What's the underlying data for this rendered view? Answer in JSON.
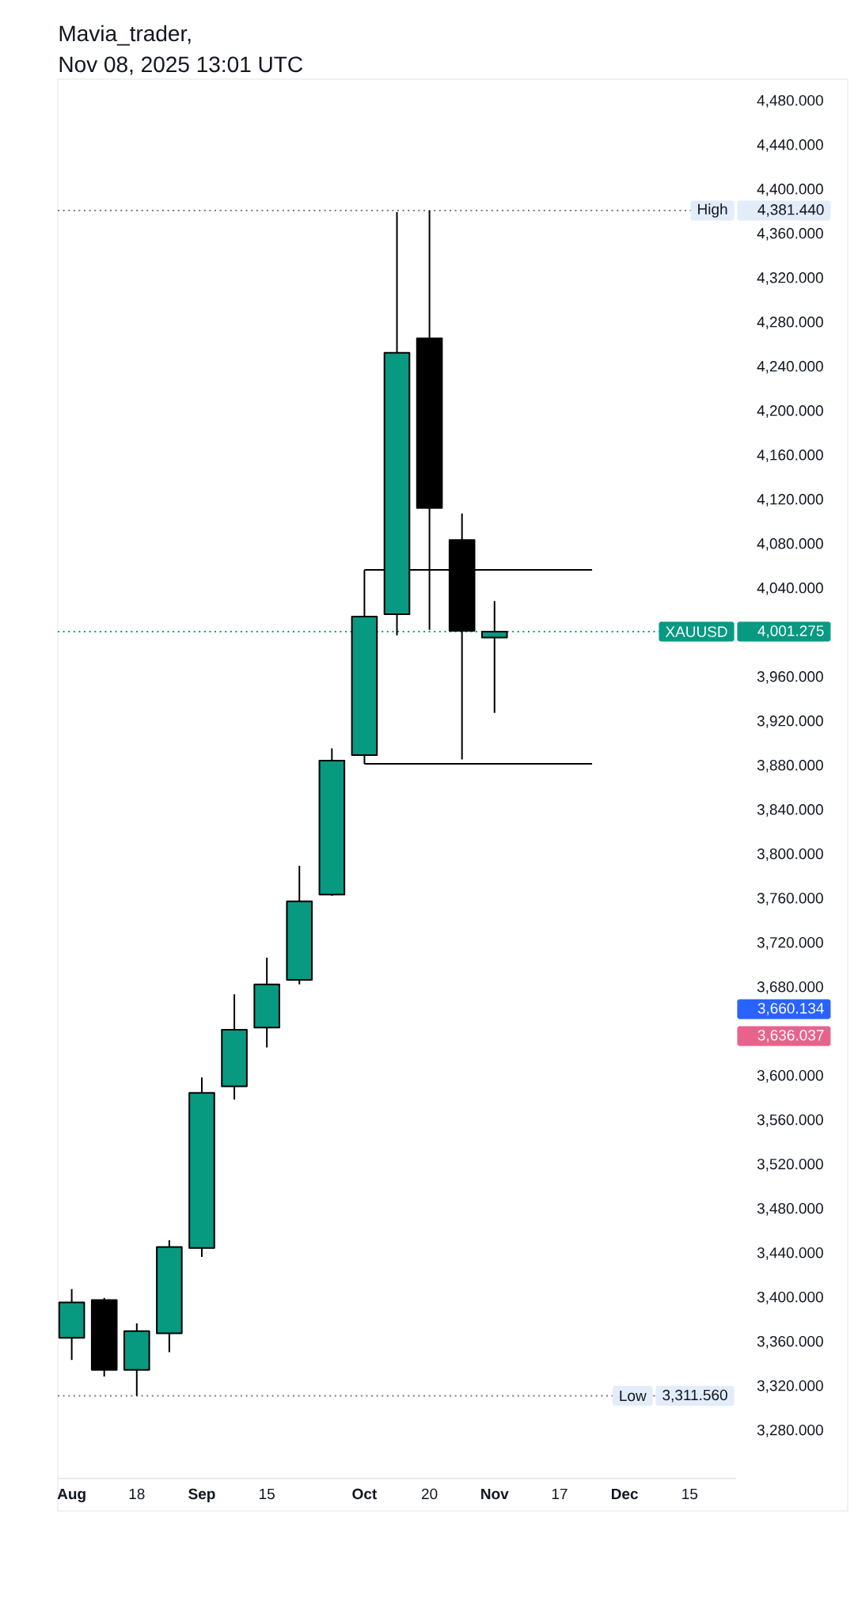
{
  "chart_data": {
    "type": "candlestick",
    "title": "Mavia_trader,",
    "subtitle": "Nov 08, 2025 13:01 UTC",
    "x": [
      "2025-08-04",
      "2025-08-11",
      "2025-08-18",
      "2025-08-25",
      "2025-09-01",
      "2025-09-08",
      "2025-09-15",
      "2025-09-22",
      "2025-09-29",
      "2025-10-06",
      "2025-10-13",
      "2025-10-20",
      "2025-10-27",
      "2025-11-03"
    ],
    "ohlc": [
      [
        3364,
        3408,
        3344,
        3396
      ],
      [
        3398,
        3400,
        3329,
        3335
      ],
      [
        3335,
        3377,
        3311.56,
        3370
      ],
      [
        3368,
        3452,
        3351,
        3446
      ],
      [
        3445,
        3599,
        3437,
        3585
      ],
      [
        3591,
        3674,
        3579,
        3642
      ],
      [
        3644,
        3707,
        3626,
        3683
      ],
      [
        3687,
        3790,
        3683,
        3758
      ],
      [
        3764,
        3896,
        3763,
        3885
      ],
      [
        3890,
        4057,
        3882,
        4015
      ],
      [
        4017,
        4380,
        3998,
        4253
      ],
      [
        4266,
        4381.44,
        4003,
        4113
      ],
      [
        4084,
        4108,
        3886,
        4002
      ],
      [
        3996,
        4029,
        3928,
        4001.275
      ]
    ],
    "colors": [
      "#089981",
      "#000000",
      "#089981",
      "#089981",
      "#089981",
      "#089981",
      "#089981",
      "#089981",
      "#089981",
      "#089981",
      "#089981",
      "#000000",
      "#000000",
      "#089981"
    ],
    "series": [
      {
        "type": "line",
        "x": [
          "2025-10-06",
          "2025-11-24"
        ],
        "values": [
          4057,
          4057
        ],
        "color": "#000000"
      },
      {
        "type": "line",
        "x": [
          "2025-10-06",
          "2025-11-24"
        ],
        "values": [
          3882,
          3882
        ],
        "color": "#000000"
      }
    ],
    "xlim": [
      "2025-08-01",
      "2025-12-25"
    ],
    "xticks": [
      {
        "value": "2025-08-04",
        "label": "Aug"
      },
      {
        "value": "2025-08-18",
        "label": "18"
      },
      {
        "value": "2025-09-01",
        "label": "Sep"
      },
      {
        "value": "2025-09-15",
        "label": "15"
      },
      {
        "value": "2025-10-06",
        "label": "Oct"
      },
      {
        "value": "2025-10-20",
        "label": "20"
      },
      {
        "value": "2025-11-03",
        "label": "Nov"
      },
      {
        "value": "2025-11-17",
        "label": "17"
      },
      {
        "value": "2025-12-01",
        "label": "Dec"
      },
      {
        "value": "2025-12-15",
        "label": "15"
      }
    ],
    "ylim": [
      3237,
      4500
    ],
    "yticks": [
      {
        "value": 3280,
        "label": "3,280.000"
      },
      {
        "value": 3320,
        "label": "3,320.000"
      },
      {
        "value": 3360,
        "label": "3,360.000"
      },
      {
        "value": 3400,
        "label": "3,400.000"
      },
      {
        "value": 3440,
        "label": "3,440.000"
      },
      {
        "value": 3480,
        "label": "3,480.000"
      },
      {
        "value": 3520,
        "label": "3,520.000"
      },
      {
        "value": 3560,
        "label": "3,560.000"
      },
      {
        "value": 3600,
        "label": "3,600.000"
      },
      {
        "value": 3680,
        "label": "3,680.000"
      },
      {
        "value": 3720,
        "label": "3,720.000"
      },
      {
        "value": 3760,
        "label": "3,760.000"
      },
      {
        "value": 3800,
        "label": "3,800.000"
      },
      {
        "value": 3840,
        "label": "3,840.000"
      },
      {
        "value": 3880,
        "label": "3,880.000"
      },
      {
        "value": 3920,
        "label": "3,920.000"
      },
      {
        "value": 3960,
        "label": "3,960.000"
      },
      {
        "value": 4040,
        "label": "4,040.000"
      },
      {
        "value": 4080,
        "label": "4,080.000"
      },
      {
        "value": 4120,
        "label": "4,120.000"
      },
      {
        "value": 4160,
        "label": "4,160.000"
      },
      {
        "value": 4200,
        "label": "4,200.000"
      },
      {
        "value": 4240,
        "label": "4,240.000"
      },
      {
        "value": 4280,
        "label": "4,280.000"
      },
      {
        "value": 4320,
        "label": "4,320.000"
      },
      {
        "value": 4360,
        "label": "4,360.000"
      },
      {
        "value": 4400,
        "label": "4,400.000"
      },
      {
        "value": 4440,
        "label": "4,440.000"
      },
      {
        "value": 4480,
        "label": "4,480.000"
      }
    ],
    "ref_lines": [
      {
        "axis": "y",
        "value": 4381.44,
        "label": "High",
        "color": "#787b86",
        "line_style": "dotted"
      },
      {
        "axis": "y",
        "value": 4001.275,
        "label": "XAUUSD",
        "color": "#089981",
        "line_style": "dotted"
      },
      {
        "axis": "y",
        "value": 3311.56,
        "label": "Low",
        "color": "#787b86",
        "line_style": "dotted"
      }
    ],
    "annotations": [
      "4,381.440",
      "4,001.275",
      "3,311.560",
      "3,660.134",
      "3,636.037"
    ]
  }
}
